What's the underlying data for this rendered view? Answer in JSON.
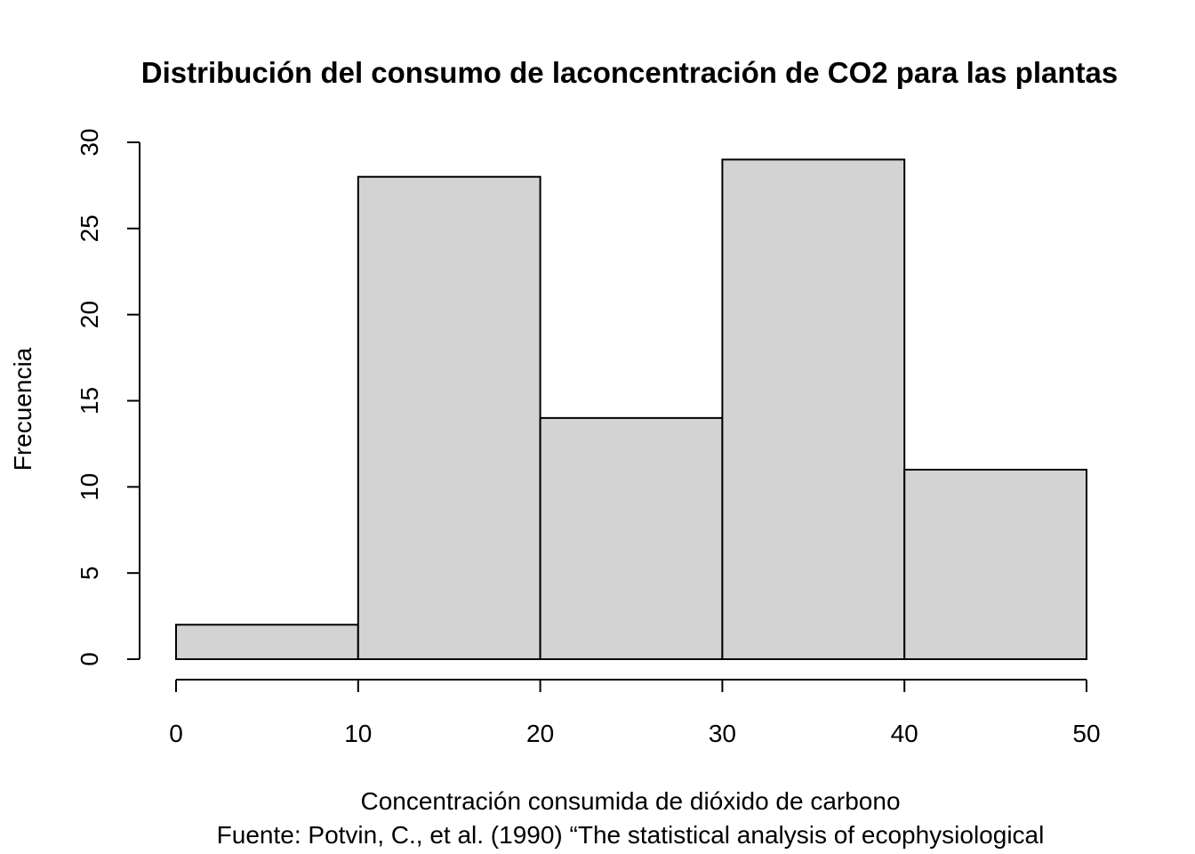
{
  "chart_data": {
    "type": "bar",
    "title": "Distribución del consumo de laconcentración de CO2 para las plantas",
    "xlabel": "Concentración consumida de dióxido de carbono",
    "caption": "Fuente: Potvin, C., et al. (1990) “The statistical analysis of ecophysiological",
    "ylabel": "Frecuencia",
    "bins": [
      {
        "from": 0,
        "to": 10,
        "count": 2
      },
      {
        "from": 10,
        "to": 20,
        "count": 28
      },
      {
        "from": 20,
        "to": 30,
        "count": 14
      },
      {
        "from": 30,
        "to": 40,
        "count": 29
      },
      {
        "from": 40,
        "to": 50,
        "count": 11
      }
    ],
    "xlim": [
      0,
      50
    ],
    "ylim": [
      0,
      30
    ],
    "x_ticks": [
      "0",
      "10",
      "20",
      "30",
      "40",
      "50"
    ],
    "y_ticks": [
      "0",
      "5",
      "10",
      "15",
      "20",
      "25",
      "30"
    ],
    "bar_color": "#d3d3d3",
    "grid": false,
    "legend": "none"
  }
}
